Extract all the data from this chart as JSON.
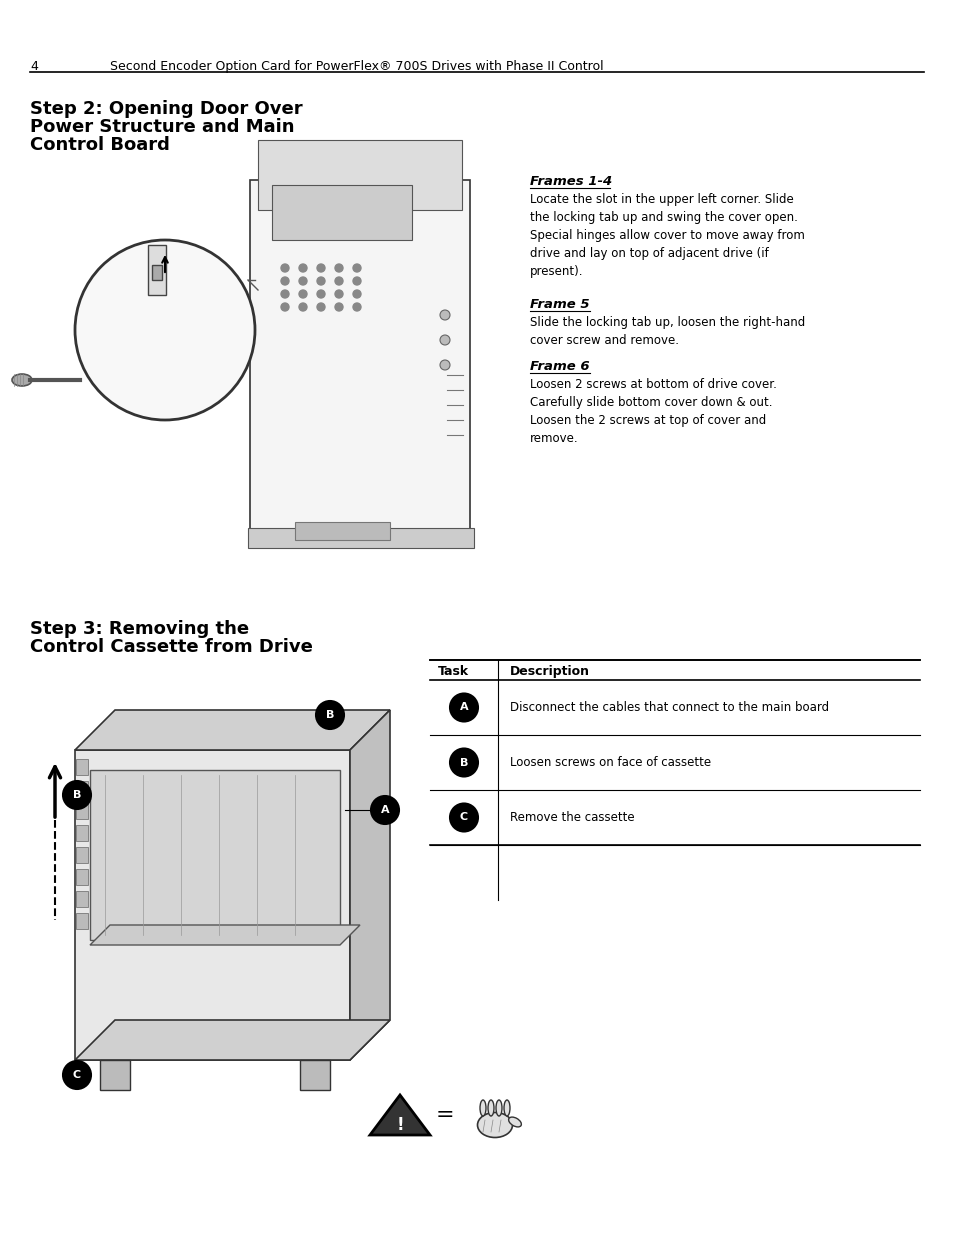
{
  "page_number": "4",
  "header_text": "Second Encoder Option Card for PowerFlex® 700S Drives with Phase II Control",
  "step2_title": "Step 2: Opening Door Over\nPower Structure and Main\nControl Board",
  "step3_title": "Step 3: Removing the\nControl Cassette from Drive",
  "frames_14_title": "Frames 1-4",
  "frames_14_text": "Locate the slot in the upper left corner. Slide\nthe locking tab up and swing the cover open.\nSpecial hinges allow cover to move away from\ndrive and lay on top of adjacent drive (if\npresent).",
  "frame5_title": "Frame 5",
  "frame5_text": "Slide the locking tab up, loosen the right-hand\ncover screw and remove.",
  "frame6_title": "Frame 6",
  "frame6_text": "Loosen 2 screws at bottom of drive cover.\nCarefully slide bottom cover down & out.\nLoosen the 2 screws at top of cover and\nremove.",
  "table_headers": [
    "Task",
    "Description"
  ],
  "table_rows": [
    [
      "A",
      "Disconnect the cables that connect to the main board"
    ],
    [
      "B",
      "Loosen screws on face of cassette"
    ],
    [
      "C",
      "Remove the cassette"
    ]
  ],
  "bg_color": "#ffffff",
  "text_color": "#000000",
  "line_color": "#000000"
}
